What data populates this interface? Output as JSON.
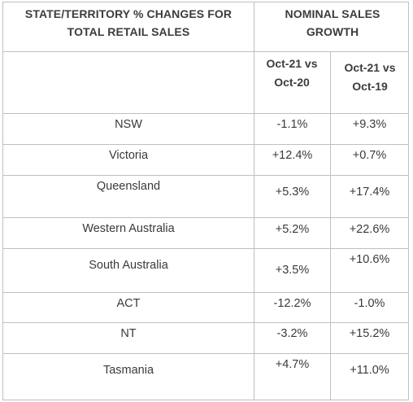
{
  "header": {
    "left_title": "STATE/TERRITORY % CHANGES FOR TOTAL RETAIL SALES",
    "right_title": "NOMINAL SALES GROWTH",
    "col1": "Oct-21 vs Oct-20",
    "col2": "Oct-21 vs Oct-19"
  },
  "rows": [
    {
      "state": "NSW",
      "c1": "-1.1%",
      "c2": "+9.3%"
    },
    {
      "state": "Victoria",
      "c1": "+12.4%",
      "c2": "+0.7%"
    },
    {
      "state": "Queensland",
      "c1": "+5.3%",
      "c2": "+17.4%"
    },
    {
      "state": "Western Australia",
      "c1": "+5.2%",
      "c2": "+22.6%"
    },
    {
      "state": "South Australia",
      "c1": "+3.5%",
      "c2": "+10.6%"
    },
    {
      "state": "ACT",
      "c1": "-12.2%",
      "c2": "-1.0%"
    },
    {
      "state": "NT",
      "c1": "-3.2%",
      "c2": "+15.2%"
    },
    {
      "state": "Tasmania",
      "c1": "+4.7%",
      "c2": "+11.0%"
    }
  ]
}
